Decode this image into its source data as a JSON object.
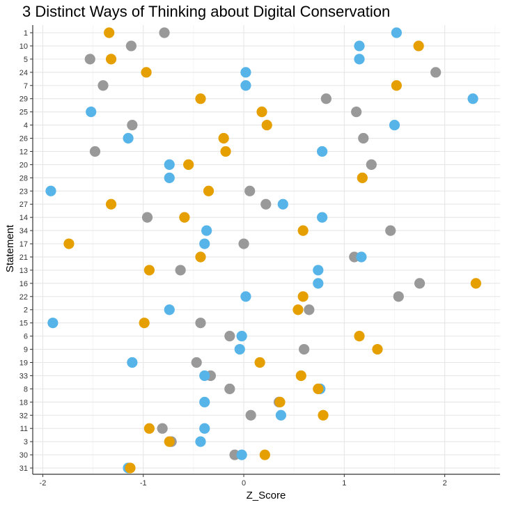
{
  "chart_data": {
    "type": "scatter",
    "title": "3 Distinct Ways of Thinking about Digital Conservation",
    "xlabel": "Z_Score",
    "ylabel": "Statement",
    "xlim": [
      -2.1,
      2.55
    ],
    "x_ticks": [
      "-2",
      "-1",
      "0",
      "1",
      "2"
    ],
    "x_tick_values": [
      -2,
      -1,
      0,
      1,
      2
    ],
    "grid": true,
    "legend": "none",
    "statements": [
      "1",
      "10",
      "5",
      "24",
      "7",
      "29",
      "25",
      "4",
      "26",
      "12",
      "20",
      "28",
      "23",
      "27",
      "14",
      "34",
      "17",
      "21",
      "13",
      "16",
      "22",
      "2",
      "15",
      "6",
      "9",
      "19",
      "33",
      "8",
      "18",
      "32",
      "11",
      "3",
      "30",
      "31"
    ],
    "series": [
      {
        "color": "#56b4e9",
        "values": [
          1.52,
          1.15,
          1.15,
          0.02,
          0.02,
          2.28,
          -1.52,
          1.5,
          -1.15,
          0.78,
          -0.74,
          -0.74,
          -1.92,
          0.39,
          0.78,
          -0.37,
          -0.39,
          1.17,
          0.74,
          0.74,
          0.02,
          -0.74,
          -1.9,
          -0.02,
          -0.04,
          -1.11,
          -0.39,
          0.76,
          -0.39,
          0.37,
          -0.39,
          -0.43,
          -0.02,
          -1.15
        ]
      },
      {
        "color": "#e69f00",
        "values": [
          -1.34,
          1.74,
          -1.32,
          -0.97,
          1.52,
          -0.43,
          0.18,
          0.23,
          -0.2,
          -0.18,
          -0.55,
          1.18,
          -0.35,
          -1.32,
          -0.59,
          0.59,
          -1.74,
          -0.43,
          -0.94,
          2.31,
          0.59,
          0.54,
          -0.99,
          1.15,
          1.33,
          0.16,
          0.57,
          0.74,
          0.36,
          0.79,
          -0.94,
          -0.74,
          0.21,
          -1.13
        ]
      },
      {
        "color": "#999999",
        "values": [
          -0.79,
          -1.12,
          -1.53,
          1.91,
          -1.4,
          0.82,
          1.12,
          -1.11,
          1.19,
          -1.48,
          1.27,
          null,
          0.06,
          0.22,
          -0.96,
          1.46,
          0.0,
          1.1,
          -0.63,
          1.75,
          1.54,
          0.65,
          -0.43,
          -0.14,
          0.6,
          -0.47,
          -0.33,
          -0.14,
          0.35,
          0.07,
          -0.81,
          -0.72,
          -0.09,
          null
        ]
      }
    ]
  }
}
